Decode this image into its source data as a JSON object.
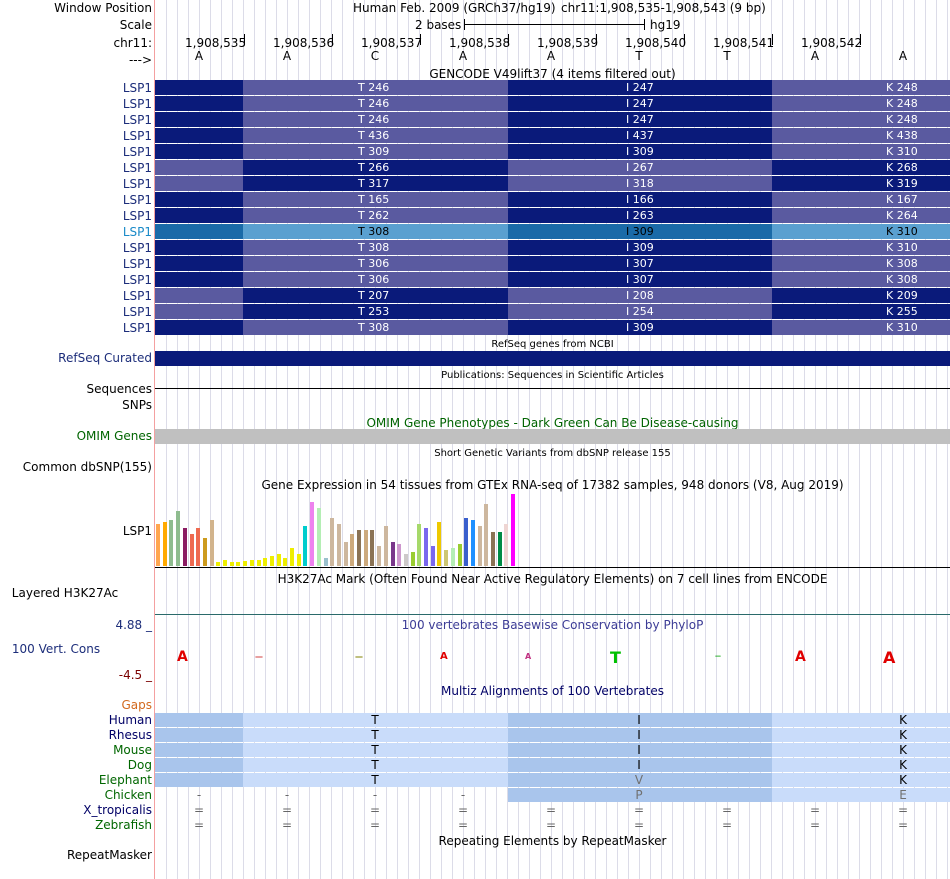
{
  "header": {
    "window_position_label": "Window Position",
    "scale_label": "Scale",
    "chrom_label": "chr11:",
    "arrow_label": "--->",
    "assembly": "Human Feb. 2009 (GRCh37/hg19)",
    "position": "chr11:1,908,535-1,908,543 (9 bp)",
    "scale_text": "2 bases",
    "db": "hg19"
  },
  "ruler": {
    "coords": [
      "1,908,535",
      "1,908,536",
      "1,908,537",
      "1,908,538",
      "1,908,539",
      "1,908,540",
      "1,908,541",
      "1,908,542"
    ],
    "bases": [
      "A",
      "A",
      "C",
      "A",
      "A",
      "T",
      "T",
      "A",
      "A"
    ]
  },
  "gencode": {
    "title": "GENCODE V49lift37 (4 items filtered out)",
    "rows": [
      {
        "name": "LSP1",
        "t": "T 246",
        "i": "I 247",
        "k": "K 248",
        "style": "a"
      },
      {
        "name": "LSP1",
        "t": "T 246",
        "i": "I 247",
        "k": "K 248",
        "style": "a"
      },
      {
        "name": "LSP1",
        "t": "T 246",
        "i": "I 247",
        "k": "K 248",
        "style": "a"
      },
      {
        "name": "LSP1",
        "t": "T 436",
        "i": "I 437",
        "k": "K 438",
        "style": "a"
      },
      {
        "name": "LSP1",
        "t": "T 309",
        "i": "I 309",
        "k": "K 310",
        "style": "a"
      },
      {
        "name": "LSP1",
        "t": "T 266",
        "i": "I 267",
        "k": "K 268",
        "style": "b"
      },
      {
        "name": "LSP1",
        "t": "T 317",
        "i": "I 318",
        "k": "K 319",
        "style": "b"
      },
      {
        "name": "LSP1",
        "t": "T 165",
        "i": "I 166",
        "k": "K 167",
        "style": "a"
      },
      {
        "name": "LSP1",
        "t": "T 262",
        "i": "I 263",
        "k": "K 264",
        "style": "a"
      },
      {
        "name": "LSP1",
        "t": "T 308",
        "i": "I 309",
        "k": "K 310",
        "style": "c"
      },
      {
        "name": "LSP1",
        "t": "T 308",
        "i": "I 309",
        "k": "K 310",
        "style": "a"
      },
      {
        "name": "LSP1",
        "t": "T 306",
        "i": "I 307",
        "k": "K 308",
        "style": "a"
      },
      {
        "name": "LSP1",
        "t": "T 306",
        "i": "I 307",
        "k": "K 308",
        "style": "a"
      },
      {
        "name": "LSP1",
        "t": "T 207",
        "i": "I 208",
        "k": "K 209",
        "style": "b"
      },
      {
        "name": "LSP1",
        "t": "T 253",
        "i": "I 254",
        "k": "K 255",
        "style": "b"
      },
      {
        "name": "LSP1",
        "t": "T 308",
        "i": "I 309",
        "k": "K 310",
        "style": "a"
      }
    ]
  },
  "refseq": {
    "title": "RefSeq genes from NCBI",
    "label": "RefSeq Curated"
  },
  "publications": {
    "title": "Publications: Sequences in Scientific Articles",
    "label1": "Sequences",
    "label2": "SNPs"
  },
  "omim": {
    "title": "OMIM Gene Phenotypes - Dark Green Can Be Disease-causing",
    "label": "OMIM Genes"
  },
  "dbsnp": {
    "title": "Short Genetic Variants from dbSNP release 155",
    "label": "Common dbSNP(155)"
  },
  "gtex": {
    "title": "Gene Expression in 54 tissues from GTEx RNA-seq of 17382 samples, 948 donors (V8, Aug 2019)",
    "label": "LSP1",
    "bars": [
      {
        "v": 42,
        "c": "#ffa54f"
      },
      {
        "v": 44,
        "c": "#ffaa00"
      },
      {
        "v": 46,
        "c": "#8fbc8f"
      },
      {
        "v": 55,
        "c": "#8fbc8f"
      },
      {
        "v": 38,
        "c": "#8b1c62"
      },
      {
        "v": 32,
        "c": "#ee6a50"
      },
      {
        "v": 38,
        "c": "#ee6a50"
      },
      {
        "v": 28,
        "c": "#cd9b1d"
      },
      {
        "v": 46,
        "c": "#d2b48c"
      },
      {
        "v": 4,
        "c": "#eeee00"
      },
      {
        "v": 6,
        "c": "#eeee00"
      },
      {
        "v": 4,
        "c": "#eeee00"
      },
      {
        "v": 4,
        "c": "#eeee00"
      },
      {
        "v": 5,
        "c": "#eeee00"
      },
      {
        "v": 6,
        "c": "#eeee00"
      },
      {
        "v": 6,
        "c": "#eeee00"
      },
      {
        "v": 8,
        "c": "#eeee00"
      },
      {
        "v": 10,
        "c": "#eeee00"
      },
      {
        "v": 12,
        "c": "#eeee00"
      },
      {
        "v": 8,
        "c": "#eeee00"
      },
      {
        "v": 18,
        "c": "#eeee00"
      },
      {
        "v": 12,
        "c": "#eeee00"
      },
      {
        "v": 40,
        "c": "#00cdcd"
      },
      {
        "v": 64,
        "c": "#ee82ee"
      },
      {
        "v": 58,
        "c": "#b4eeb4"
      },
      {
        "v": 8,
        "c": "#9ac0cd"
      },
      {
        "v": 48,
        "c": "#cdb79e"
      },
      {
        "v": 42,
        "c": "#cdb79e"
      },
      {
        "v": 24,
        "c": "#cdb79e"
      },
      {
        "v": 32,
        "c": "#cdaa7d"
      },
      {
        "v": 36,
        "c": "#8b7355"
      },
      {
        "v": 36,
        "c": "#cdaa7d"
      },
      {
        "v": 36,
        "c": "#8b7355"
      },
      {
        "v": 20,
        "c": "#cdb79e"
      },
      {
        "v": 40,
        "c": "#cdb79e"
      },
      {
        "v": 24,
        "c": "#7a378b"
      },
      {
        "v": 22,
        "c": "#cd96cd"
      },
      {
        "v": 12,
        "c": "#cdc9c9"
      },
      {
        "v": 14,
        "c": "#9acd32"
      },
      {
        "v": 42,
        "c": "#a6d96a"
      },
      {
        "v": 38,
        "c": "#7a67ee"
      },
      {
        "v": 20,
        "c": "#7a67ee"
      },
      {
        "v": 44,
        "c": "#eec900"
      },
      {
        "v": 16,
        "c": "#cdc673"
      },
      {
        "v": 18,
        "c": "#b4eeb4"
      },
      {
        "v": 22,
        "c": "#9acd32"
      },
      {
        "v": 48,
        "c": "#3a5fcd"
      },
      {
        "v": 46,
        "c": "#1e90ff"
      },
      {
        "v": 40,
        "c": "#cdb79e"
      },
      {
        "v": 62,
        "c": "#cdb79e"
      },
      {
        "v": 34,
        "c": "#8b7355"
      },
      {
        "v": 34,
        "c": "#008b45"
      },
      {
        "v": 42,
        "c": "#eed5d2"
      },
      {
        "v": 72,
        "c": "#ff00ff"
      }
    ]
  },
  "h3k27ac": {
    "title": "H3K27Ac Mark (Often Found Near Active Regulatory Elements) on 7 cell lines from ENCODE",
    "label": "Layered H3K27Ac"
  },
  "cons": {
    "title": "100 vertebrates Basewise Conservation by PhyloP",
    "label": "100 Vert. Cons",
    "max": "4.88 _",
    "min": "-4.5 _"
  },
  "multiz": {
    "title": "Multiz Alignments of 100 Vertebrates",
    "gaps_label": "Gaps",
    "species": [
      {
        "name": "Human",
        "t": "T",
        "i": "I",
        "k": "K",
        "color": "#000066"
      },
      {
        "name": "Rhesus",
        "t": "T",
        "i": "I",
        "k": "K",
        "color": "#000066"
      },
      {
        "name": "Mouse",
        "t": "T",
        "i": "I",
        "k": "K",
        "color": "#006600"
      },
      {
        "name": "Dog",
        "t": "T",
        "i": "I",
        "k": "K",
        "color": "#006600"
      },
      {
        "name": "Elephant",
        "t": "T",
        "i": "V",
        "k": "K",
        "color": "#006600"
      },
      {
        "name": "Chicken",
        "t": "",
        "i": "P",
        "k": "E",
        "color": "#006600"
      },
      {
        "name": "X_tropicalis",
        "t": "",
        "i": "",
        "k": "",
        "color": "#000066"
      },
      {
        "name": "Zebrafish",
        "t": "",
        "i": "",
        "k": "",
        "color": "#006600"
      }
    ],
    "dash": "-",
    "eq": "="
  },
  "repeatmasker": {
    "title": "Repeating Elements by RepeatMasker",
    "label": "RepeatMasker"
  },
  "colors": {
    "dark": "#0a1a7a",
    "mid": "#5a5aa0",
    "hi": "#1a6aa8",
    "hi_light": "#5aa0d0",
    "omim": "#c0c0c0",
    "mz_dark": "#a9c5ec",
    "mz_light": "#c9dcfa"
  }
}
